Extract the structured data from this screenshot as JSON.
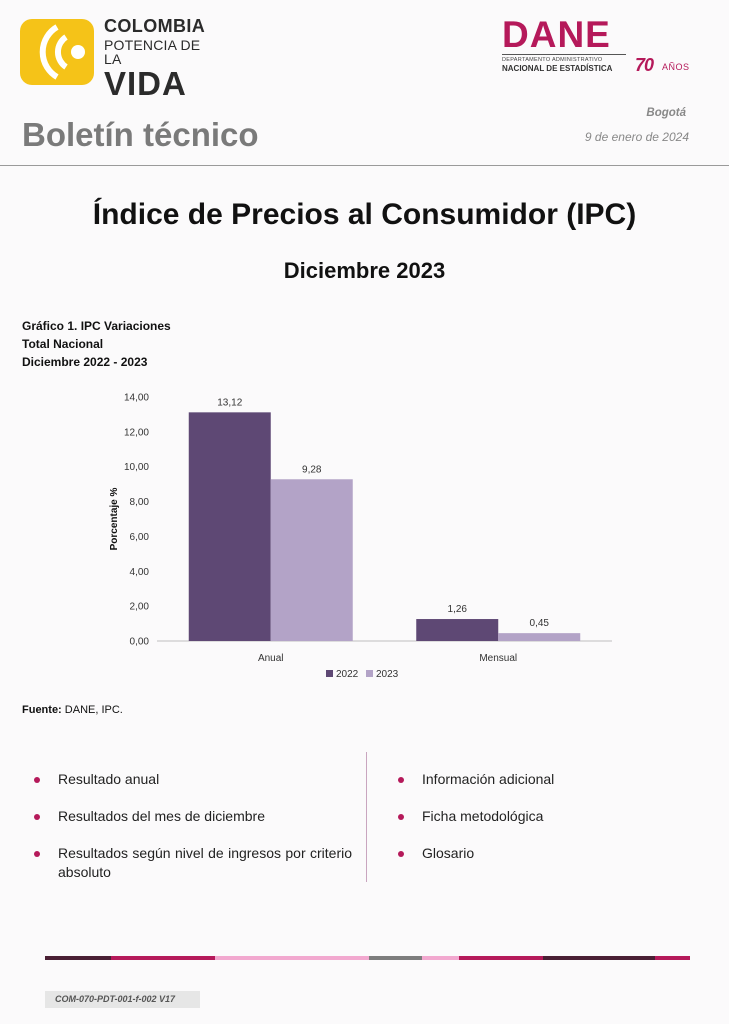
{
  "header": {
    "colombia_logo": {
      "line1": "COLOMBIA",
      "line2": "POTENCIA DE LA",
      "line3": "VIDA",
      "mark_color": "#f5c318",
      "icon": "colombia-logo-mark"
    },
    "dane_logo": {
      "name": "DANE",
      "subtitle_line1": "DEPARTAMENTO ADMINISTRATIVO",
      "subtitle_line2": "NACIONAL DE ESTADÍSTICA",
      "anniversary_number": "70",
      "anniversary_word": "AÑOS",
      "brand_color": "#b5195a"
    },
    "section_title": "Boletín técnico",
    "city": "Bogotá",
    "date": "9 de enero de 2024"
  },
  "document": {
    "title": "Índice de Precios al Consumidor (IPC)",
    "subtitle": "Diciembre 2023"
  },
  "chart_caption": {
    "line1": "Gráfico 1. IPC Variaciones",
    "line2": "Total Nacional",
    "line3": "Diciembre 2022 - 2023"
  },
  "chart_data": {
    "type": "bar",
    "categories": [
      "Anual",
      "Mensual"
    ],
    "series": [
      {
        "name": "2022",
        "values": [
          13.12,
          1.26
        ],
        "labels": [
          "13,12",
          "1,26"
        ],
        "color": "#5e4874"
      },
      {
        "name": "2023",
        "values": [
          9.28,
          0.45
        ],
        "labels": [
          "9,28",
          "0,45"
        ],
        "color": "#b3a3c7"
      }
    ],
    "ylabel": "Porcentaje %",
    "xlabel": "",
    "ylim": [
      0,
      14
    ],
    "yticks": [
      0,
      2,
      4,
      6,
      8,
      10,
      12,
      14
    ],
    "ytick_labels": [
      "0,00",
      "2,00",
      "4,00",
      "6,00",
      "8,00",
      "10,00",
      "12,00",
      "14,00"
    ],
    "grid": false,
    "legend_position": "bottom-center"
  },
  "source": {
    "label": "Fuente:",
    "text": "DANE, IPC."
  },
  "index": {
    "left": [
      "Resultado anual",
      "Resultados del mes de diciembre",
      "Resultados según nivel de ingresos por criterio absoluto"
    ],
    "right": [
      "Información adicional",
      "Ficha metodológica",
      "Glosario"
    ],
    "bullet_color": "#b5195a"
  },
  "footer": {
    "bar_colors": [
      "#4a1f34",
      "#b5195a",
      "#f2a8cf",
      "#7d7d7d",
      "#f2a8cf",
      "#b5195a",
      "#4a1f34",
      "#b5195a"
    ],
    "code": "COM-070-PDT-001-f-002 V17"
  }
}
